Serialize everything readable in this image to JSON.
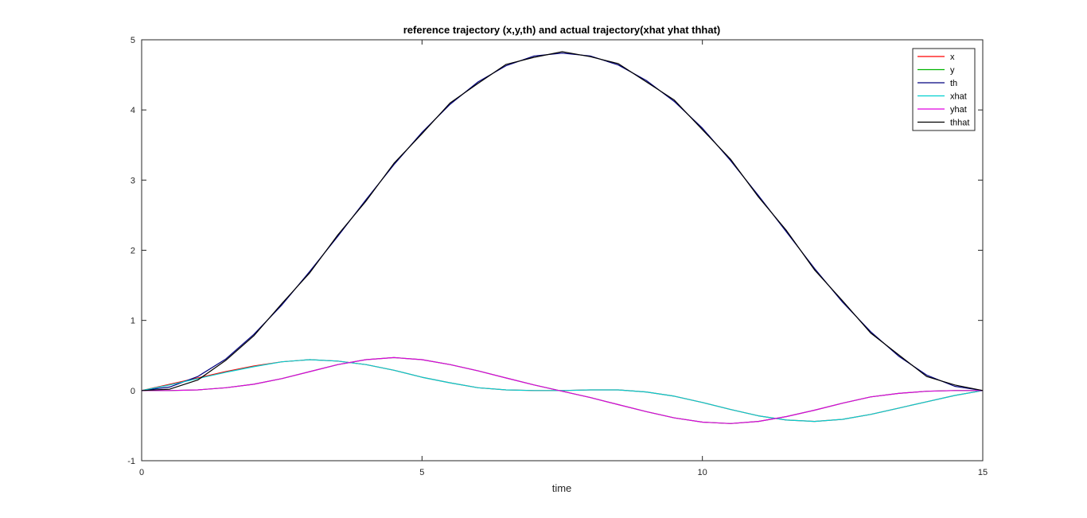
{
  "chart_data": {
    "type": "line",
    "title": "reference trajectory (x,y,th) and actual trajectory(xhat yhat thhat)",
    "xlabel": "time",
    "ylabel": "",
    "xlim": [
      0,
      15
    ],
    "ylim": [
      -1,
      5
    ],
    "xticks": [
      0,
      5,
      10,
      15
    ],
    "yticks": [
      -1,
      0,
      1,
      2,
      3,
      4,
      5
    ],
    "grid": false,
    "legend_position": "top-right",
    "x": [
      0,
      0.5,
      1,
      1.5,
      2,
      2.5,
      3,
      3.5,
      4,
      4.5,
      5,
      5.5,
      6,
      6.5,
      7,
      7.5,
      8,
      8.5,
      9,
      9.5,
      10,
      10.5,
      11,
      11.5,
      12,
      12.5,
      13,
      13.5,
      14,
      14.5,
      15
    ],
    "series": [
      {
        "name": "x",
        "color": "#ff0000",
        "values": [
          0,
          0.09,
          0.18,
          0.27,
          0.35,
          0.41,
          0.44,
          0.42,
          0.37,
          0.29,
          0.19,
          0.11,
          0.04,
          0.01,
          0.0,
          0.0,
          0.01,
          0.01,
          -0.02,
          -0.08,
          -0.17,
          -0.27,
          -0.36,
          -0.42,
          -0.44,
          -0.41,
          -0.34,
          -0.25,
          -0.16,
          -0.07,
          0
        ]
      },
      {
        "name": "y",
        "color": "#00b400",
        "values": [
          0,
          0.0,
          0.01,
          0.04,
          0.09,
          0.17,
          0.27,
          0.37,
          0.44,
          0.47,
          0.44,
          0.37,
          0.28,
          0.18,
          0.08,
          -0.01,
          -0.1,
          -0.2,
          -0.3,
          -0.39,
          -0.45,
          -0.47,
          -0.44,
          -0.37,
          -0.28,
          -0.18,
          -0.09,
          -0.04,
          -0.01,
          0.0,
          0
        ]
      },
      {
        "name": "th",
        "color": "#00007f",
        "values": [
          0,
          0.05,
          0.2,
          0.45,
          0.8,
          1.22,
          1.7,
          2.2,
          2.72,
          3.22,
          3.68,
          4.08,
          4.4,
          4.63,
          4.77,
          4.81,
          4.77,
          4.64,
          4.42,
          4.12,
          3.74,
          3.28,
          2.78,
          2.26,
          1.74,
          1.26,
          0.84,
          0.49,
          0.22,
          0.06,
          0
        ]
      },
      {
        "name": "xhat",
        "color": "#00d0d0",
        "values": [
          0,
          0.08,
          0.17,
          0.26,
          0.34,
          0.41,
          0.44,
          0.42,
          0.37,
          0.29,
          0.19,
          0.11,
          0.04,
          0.01,
          0.0,
          0.0,
          0.01,
          0.01,
          -0.02,
          -0.08,
          -0.17,
          -0.27,
          -0.36,
          -0.42,
          -0.44,
          -0.41,
          -0.34,
          -0.25,
          -0.16,
          -0.07,
          0
        ]
      },
      {
        "name": "yhat",
        "color": "#e000e0",
        "values": [
          0,
          0.0,
          0.01,
          0.04,
          0.09,
          0.17,
          0.27,
          0.37,
          0.44,
          0.47,
          0.44,
          0.37,
          0.28,
          0.18,
          0.08,
          -0.01,
          -0.1,
          -0.2,
          -0.3,
          -0.39,
          -0.45,
          -0.47,
          -0.44,
          -0.37,
          -0.28,
          -0.18,
          -0.09,
          -0.04,
          -0.01,
          0.0,
          0
        ]
      },
      {
        "name": "thhat",
        "color": "#000000",
        "values": [
          0,
          0.02,
          0.15,
          0.43,
          0.78,
          1.24,
          1.68,
          2.22,
          2.7,
          3.24,
          3.66,
          4.1,
          4.38,
          4.65,
          4.75,
          4.83,
          4.76,
          4.66,
          4.4,
          4.14,
          3.72,
          3.3,
          2.76,
          2.28,
          1.72,
          1.28,
          0.82,
          0.51,
          0.2,
          0.08,
          0
        ]
      }
    ]
  }
}
